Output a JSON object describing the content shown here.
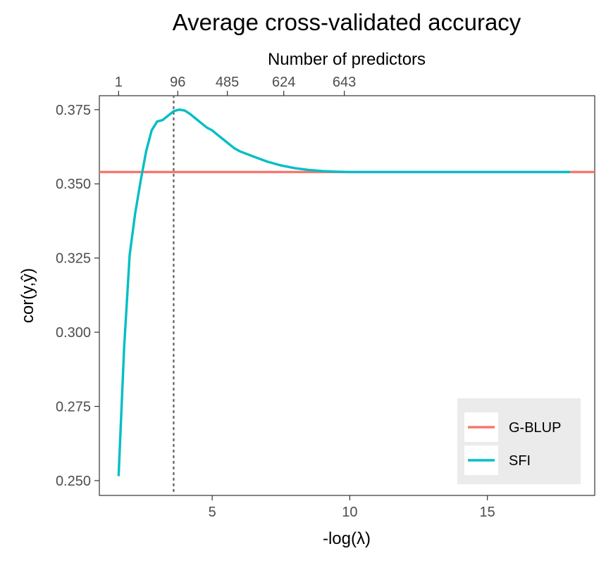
{
  "chart_data": {
    "type": "line",
    "title": "Average cross-validated accuracy",
    "xlabel": "-log(λ)",
    "ylabel": "cor(y,ŷ)",
    "xlim": [
      0.9,
      18.9
    ],
    "ylim": [
      0.245,
      0.3797
    ],
    "x_ticks": [
      5,
      10,
      15
    ],
    "y_ticks": [
      0.25,
      0.275,
      0.3,
      0.325,
      0.35,
      0.375
    ],
    "y_tick_labels": [
      "0.250",
      "0.275",
      "0.300",
      "0.325",
      "0.350",
      "0.375"
    ],
    "secondary_x_axis": {
      "label": "Number of predictors",
      "ticks": [
        {
          "x": 1.6,
          "label": "1"
        },
        {
          "x": 3.75,
          "label": "96"
        },
        {
          "x": 5.55,
          "label": "485"
        },
        {
          "x": 7.6,
          "label": "624"
        },
        {
          "x": 9.8,
          "label": "643"
        }
      ]
    },
    "vline": {
      "x": 3.6,
      "style": "dotted"
    },
    "grid": false,
    "legend": {
      "position": "bottom-right",
      "entries": [
        {
          "name": "G-BLUP",
          "color": "#F8766D"
        },
        {
          "name": "SFI",
          "color": "#00BFC4"
        }
      ]
    },
    "series": [
      {
        "name": "G-BLUP",
        "color": "#F8766D",
        "x": [
          0.9,
          18.9
        ],
        "y": [
          0.354,
          0.354
        ]
      },
      {
        "name": "SFI",
        "color": "#00BFC4",
        "x": [
          1.6,
          1.8,
          2.0,
          2.2,
          2.4,
          2.6,
          2.8,
          3.0,
          3.2,
          3.4,
          3.6,
          3.8,
          4.0,
          4.2,
          4.4,
          4.6,
          4.8,
          5.0,
          5.2,
          5.4,
          5.6,
          5.8,
          6.0,
          6.5,
          7.0,
          7.5,
          8.0,
          8.5,
          9.0,
          9.5,
          10.0,
          11.0,
          12.0,
          13.0,
          14.0,
          15.0,
          16.0,
          17.0,
          18.0
        ],
        "y": [
          0.2515,
          0.295,
          0.326,
          0.34,
          0.351,
          0.361,
          0.368,
          0.371,
          0.3715,
          0.373,
          0.3745,
          0.375,
          0.3747,
          0.3735,
          0.372,
          0.3705,
          0.369,
          0.368,
          0.3665,
          0.365,
          0.3635,
          0.362,
          0.361,
          0.3592,
          0.3575,
          0.3562,
          0.3553,
          0.3547,
          0.3543,
          0.3541,
          0.354,
          0.354,
          0.354,
          0.354,
          0.354,
          0.354,
          0.354,
          0.354,
          0.354
        ]
      }
    ]
  }
}
